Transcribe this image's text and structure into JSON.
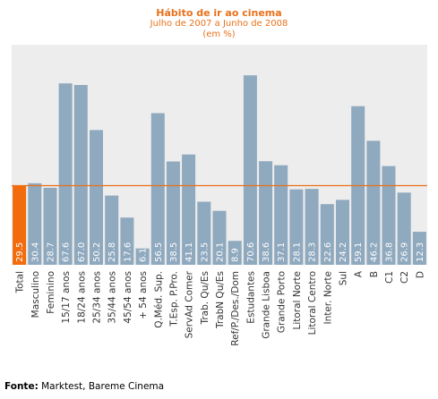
{
  "chart_data": {
    "type": "bar",
    "title": "Hábito de ir ao cinema",
    "subtitle": "Julho de 2007 a Junho de 2008",
    "unit_note": "(em %)",
    "reference_line": 29.5,
    "categories": [
      "Total",
      "Masculino",
      "Feminino",
      "15/17 anos",
      "18/24 anos",
      "25/34 anos",
      "35/44 anos",
      "45/54 anos",
      "+ 54  anos",
      "Q.Méd. Sup.",
      "T.Esp. P.Pro.",
      "ServAd Comer",
      "Trab. Qu/Es",
      "TrabN Qu/Es",
      "Ref/P./Des./Dom",
      "Estudantes",
      "Grande Lisboa",
      "Grande Porto",
      "Litoral Norte",
      "Litoral Centro",
      "Inter. Norte",
      "Sul",
      "A",
      "B",
      "C1",
      "C2",
      "D"
    ],
    "value_labels": [
      "29.5",
      "30.4",
      "28.7",
      "67.6",
      "67.0",
      "50.2",
      "25.8",
      "17.6",
      "6.1",
      "56.5",
      "38.5",
      "41.1",
      "23.5",
      "20.1",
      "8.9",
      "70.6",
      "38.6",
      "37.1",
      "28.1",
      "28.3",
      "22.6",
      "24.2",
      "59.1",
      "46.2",
      "36.8",
      "26.9",
      "12.3"
    ],
    "values": [
      29.5,
      30.4,
      28.7,
      67.6,
      67.0,
      50.2,
      25.8,
      17.6,
      6.1,
      56.5,
      38.5,
      41.1,
      23.5,
      20.1,
      8.9,
      70.6,
      38.6,
      37.1,
      28.1,
      28.3,
      22.6,
      24.2,
      59.1,
      46.2,
      36.8,
      26.9,
      12.3
    ],
    "ylim": [
      0,
      80
    ],
    "grid": false,
    "colors": {
      "highlight": "#f26c0d",
      "bar": "#8fa9bf",
      "reference": "#e8711a",
      "plot_bg": "#ededed"
    }
  },
  "source": {
    "label": "Fonte:",
    "text": " Marktest, Bareme Cinema"
  }
}
